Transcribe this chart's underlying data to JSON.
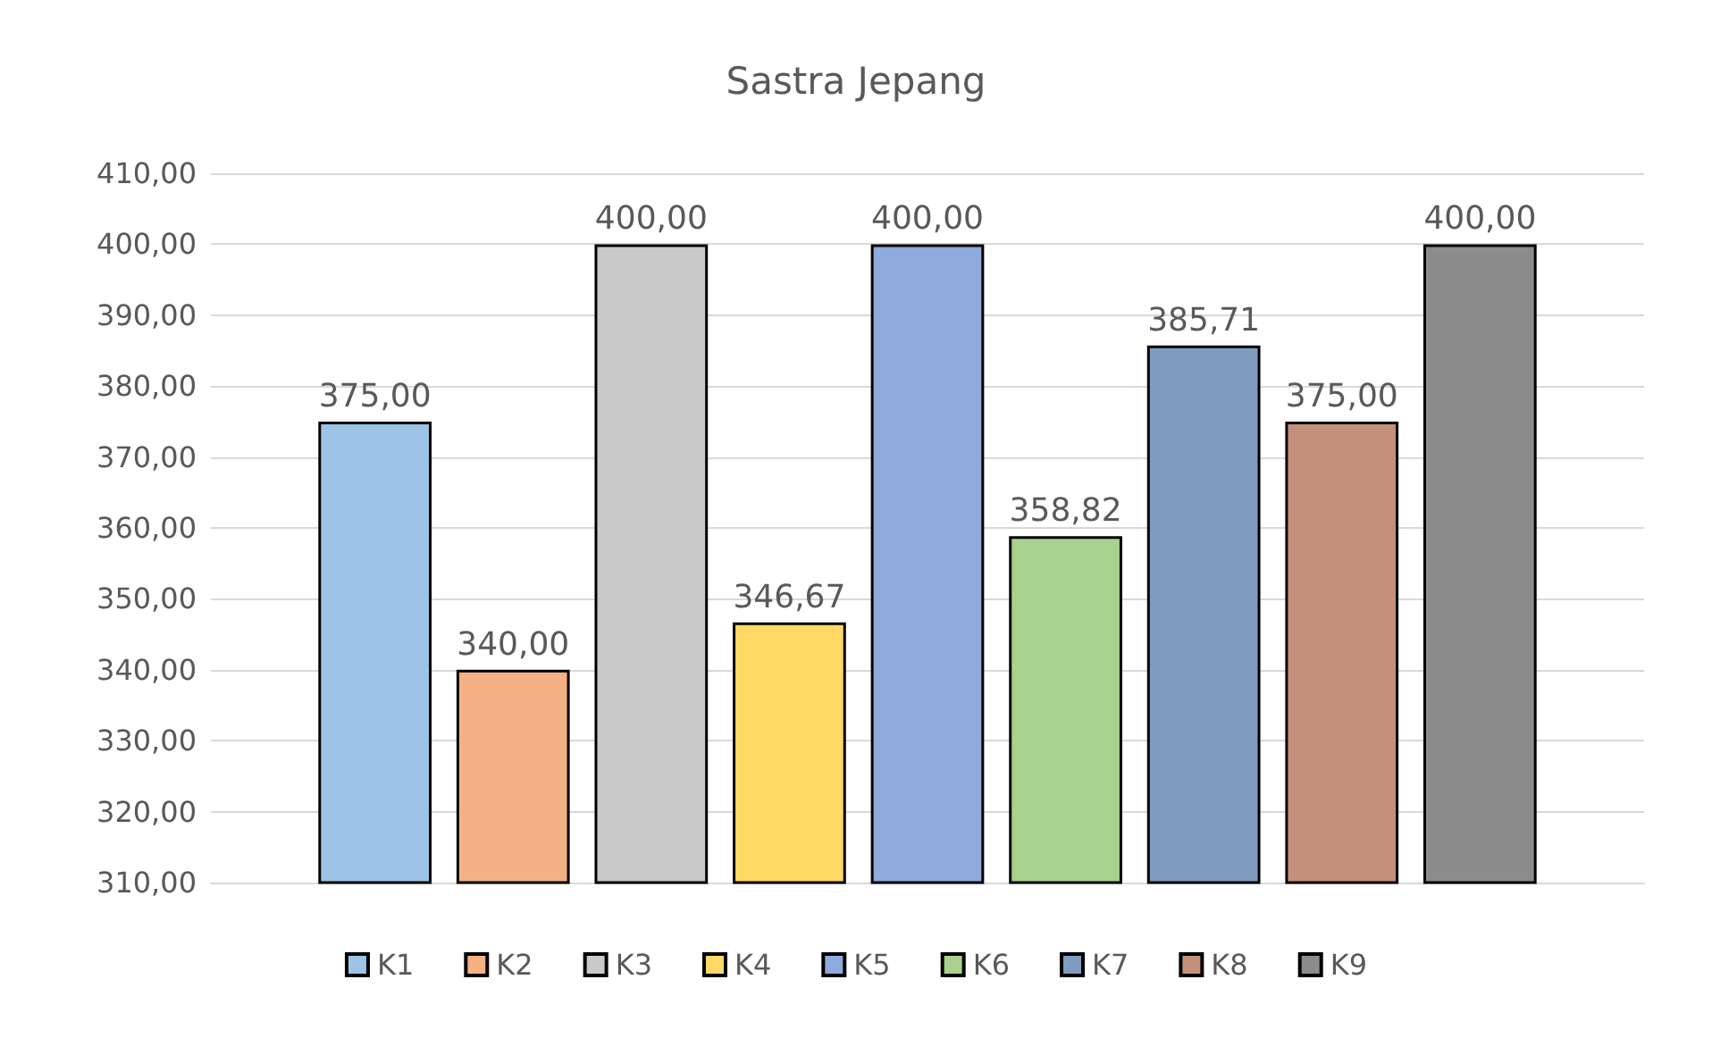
{
  "chart_data": {
    "type": "bar",
    "title": "Sastra Jepang",
    "categories": [
      null
    ],
    "series": [
      {
        "name": "K1",
        "color": "#9dc3e6",
        "values": [
          375
        ],
        "value_labels": [
          "375,00"
        ]
      },
      {
        "name": "K2",
        "color": "#f4b183",
        "values": [
          340
        ],
        "value_labels": [
          "340,00"
        ]
      },
      {
        "name": "K3",
        "color": "#c9c9c9",
        "values": [
          400
        ],
        "value_labels": [
          "400,00"
        ]
      },
      {
        "name": "K4",
        "color": "#ffd966",
        "values": [
          346.67
        ],
        "value_labels": [
          "346,67"
        ]
      },
      {
        "name": "K5",
        "color": "#8faadc",
        "values": [
          400
        ],
        "value_labels": [
          "400,00"
        ]
      },
      {
        "name": "K6",
        "color": "#a9d18e",
        "values": [
          358.82
        ],
        "value_labels": [
          "358,82"
        ]
      },
      {
        "name": "K7",
        "color": "#7f9cc0",
        "values": [
          385.71
        ],
        "value_labels": [
          "385,71"
        ]
      },
      {
        "name": "K8",
        "color": "#c4907c",
        "values": [
          375
        ],
        "value_labels": [
          "375,00"
        ]
      },
      {
        "name": "K9",
        "color": "#8c8c8c",
        "values": [
          400
        ],
        "value_labels": [
          "400,00"
        ]
      }
    ],
    "ylim": [
      310,
      410
    ],
    "yticks": [
      {
        "value": 310,
        "label": "310,00"
      },
      {
        "value": 320,
        "label": "320,00"
      },
      {
        "value": 330,
        "label": "330,00"
      },
      {
        "value": 340,
        "label": "340,00"
      },
      {
        "value": 350,
        "label": "350,00"
      },
      {
        "value": 360,
        "label": "360,00"
      },
      {
        "value": 370,
        "label": "370,00"
      },
      {
        "value": 380,
        "label": "380,00"
      },
      {
        "value": 390,
        "label": "390,00"
      },
      {
        "value": 400,
        "label": "400,00"
      },
      {
        "value": 410,
        "label": "410,00"
      }
    ],
    "grid": "y",
    "legend": "bottom"
  }
}
